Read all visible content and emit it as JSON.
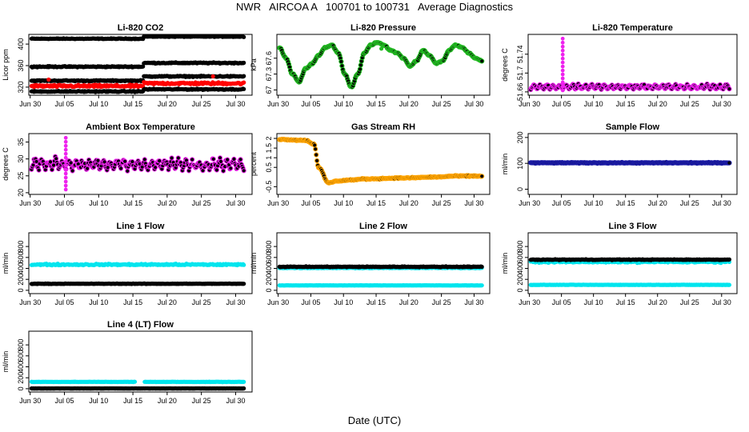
{
  "page": {
    "title": "NWR   AIRCOA A   100701 to 100731   Average Diagnostics",
    "xlabel": "Date (UTC)"
  },
  "colors": {
    "black": "#000000",
    "red": "#ff0000",
    "green": "#22bb22",
    "magenta": "#ee22ee",
    "orange": "#ffa500",
    "blue": "#1a1aa6",
    "cyan": "#00e5ee"
  },
  "x_tick_labels": [
    "Jun 30",
    "Jul 05",
    "Jul 10",
    "Jul 15",
    "Jul 20",
    "Jul 25",
    "Jul 30"
  ],
  "chart_data": [
    {
      "type": "scatter",
      "title": "Li-820 CO2",
      "ylabel": "Licor ppm",
      "xlim": [
        0.6,
        33.2
      ],
      "ylim": [
        305,
        418
      ],
      "yticks": [
        320,
        360,
        400
      ],
      "series": [
        {
          "name": "black-upper",
          "color": "black",
          "y_before": 410,
          "y_after": 414,
          "noise": 1
        },
        {
          "name": "black-middle",
          "color": "black",
          "y_before": 358,
          "y_after": 365,
          "noise": 1.5
        },
        {
          "name": "black-lower-1",
          "color": "black",
          "y_before": 332,
          "y_after": 340,
          "noise": 1.5
        },
        {
          "name": "red",
          "color": "red",
          "y_before": 322,
          "y_after": 327,
          "noise": 3,
          "outliers": [
            [
              3.5,
              334
            ],
            [
              27.5,
              340
            ]
          ]
        },
        {
          "name": "black-lower-2",
          "color": "black",
          "y_before": 312,
          "y_after": 316,
          "noise": 1.5
        }
      ],
      "step_day": 17.3
    },
    {
      "type": "scatter",
      "title": "Li-820 Pressure",
      "ylabel": "kPa",
      "xlim": [
        0.6,
        33.2
      ],
      "ylim": [
        66.9,
        68.05
      ],
      "yticks": [
        67.0,
        67.3,
        67.6
      ],
      "series": [
        {
          "name": "pressure",
          "color": "black",
          "edge": "green",
          "knots": [
            [
              1,
              67.8
            ],
            [
              2,
              67.6
            ],
            [
              3,
              67.3
            ],
            [
              4,
              67.15
            ],
            [
              5,
              67.4
            ],
            [
              6,
              67.5
            ],
            [
              7,
              67.65
            ],
            [
              8,
              67.8
            ],
            [
              9,
              67.85
            ],
            [
              10,
              67.7
            ],
            [
              11,
              67.3
            ],
            [
              12,
              67.05
            ],
            [
              13,
              67.3
            ],
            [
              14,
              67.7
            ],
            [
              15,
              67.85
            ],
            [
              16,
              67.9
            ],
            [
              17,
              67.85
            ],
            [
              18,
              67.75
            ],
            [
              19,
              67.7
            ],
            [
              20,
              67.6
            ],
            [
              21,
              67.45
            ],
            [
              22,
              67.55
            ],
            [
              23,
              67.75
            ],
            [
              24,
              67.65
            ],
            [
              25,
              67.5
            ],
            [
              26,
              67.55
            ],
            [
              27,
              67.75
            ],
            [
              28,
              67.85
            ],
            [
              29,
              67.8
            ],
            [
              30,
              67.7
            ],
            [
              31,
              67.6
            ],
            [
              32,
              67.55
            ]
          ]
        }
      ],
      "outliers": [
        [
          16.6,
          67.78
        ]
      ]
    },
    {
      "type": "scatter",
      "title": "Li-820 Temperature",
      "ylabel": "degrees C",
      "xlim": [
        0.6,
        33.2
      ],
      "ylim": [
        51.653,
        51.782
      ],
      "yticks": [
        51.66,
        51.7,
        51.74
      ],
      "series": [
        {
          "name": "temperature",
          "color": "black",
          "edge": "magenta",
          "base": 51.668,
          "amp": 0.008
        }
      ],
      "spike_day": 6.0
    },
    {
      "type": "scatter",
      "title": "Ambient Box Temperature",
      "ylabel": "degrees C",
      "xlim": [
        0.6,
        33.2
      ],
      "ylim": [
        19.5,
        37.5
      ],
      "yticks": [
        20,
        25,
        30,
        35
      ],
      "series": [
        {
          "name": "box-temperature",
          "color": "black",
          "edge": "magenta",
          "base": 27.5,
          "amp": 2.5
        }
      ],
      "spike_day": 6.0
    },
    {
      "type": "scatter",
      "title": "Gas Stream RH",
      "ylabel": "percent",
      "xlim": [
        0.6,
        33.2
      ],
      "ylim": [
        -0.9,
        2.25
      ],
      "yticks": [
        -0.5,
        0.5,
        1.0,
        1.5,
        2.0
      ],
      "series": [
        {
          "name": "rh",
          "color": "black",
          "edge": "orange",
          "knots": [
            [
              1,
              1.95
            ],
            [
              5,
              1.9
            ],
            [
              6.3,
              1.7
            ],
            [
              7,
              0.5
            ],
            [
              8.5,
              -0.3
            ],
            [
              10,
              -0.2
            ],
            [
              12,
              -0.15
            ],
            [
              14,
              -0.1
            ],
            [
              20,
              -0.05
            ],
            [
              25,
              0.0
            ],
            [
              28,
              0.05
            ],
            [
              32,
              0.05
            ]
          ]
        }
      ]
    },
    {
      "type": "scatter",
      "title": "Sample Flow",
      "ylabel": "ml/min",
      "xlim": [
        0.6,
        33.2
      ],
      "ylim": [
        -20,
        215
      ],
      "yticks": [
        0,
        100,
        200
      ],
      "series": [
        {
          "name": "sample-flow",
          "color": "black",
          "edge": "blue",
          "base": 102,
          "noise": 2
        }
      ]
    },
    {
      "type": "scatter",
      "title": "Line 1 Flow",
      "ylabel": "ml/min",
      "xlim": [
        0.6,
        33.2
      ],
      "ylim": [
        -60,
        1050
      ],
      "yticks": [
        0,
        200,
        400,
        600,
        800
      ],
      "series": [
        {
          "name": "cyan",
          "color": "cyan",
          "base": 470,
          "noise": 20
        },
        {
          "name": "black",
          "color": "black",
          "base": 120,
          "noise": 6
        }
      ]
    },
    {
      "type": "scatter",
      "title": "Line 2 Flow",
      "ylabel": "ml/min",
      "xlim": [
        0.6,
        33.2
      ],
      "ylim": [
        -60,
        1050
      ],
      "yticks": [
        0,
        200,
        400,
        600,
        800
      ],
      "series": [
        {
          "name": "cyan-upper",
          "color": "cyan",
          "base": 410,
          "noise": 10
        },
        {
          "name": "black",
          "color": "black",
          "base": 430,
          "noise": 10
        },
        {
          "name": "cyan-lower",
          "color": "cyan",
          "base": 90,
          "noise": 3
        }
      ]
    },
    {
      "type": "scatter",
      "title": "Line 3 Flow",
      "ylabel": "ml/min",
      "xlim": [
        0.6,
        33.2
      ],
      "ylim": [
        -60,
        1050
      ],
      "yticks": [
        0,
        200,
        400,
        600,
        800
      ],
      "series": [
        {
          "name": "cyan-upper",
          "color": "cyan",
          "base": 520,
          "noise": 20
        },
        {
          "name": "black",
          "color": "black",
          "base": 560,
          "noise": 10
        },
        {
          "name": "cyan-lower",
          "color": "cyan",
          "base": 100,
          "noise": 4
        }
      ]
    },
    {
      "type": "scatter",
      "title": "Line 4 (LT) Flow",
      "ylabel": "ml/min",
      "xlim": [
        0.6,
        33.2
      ],
      "ylim": [
        -60,
        1050
      ],
      "yticks": [
        0,
        200,
        400,
        600,
        800
      ],
      "series": [
        {
          "name": "cyan",
          "color": "cyan",
          "base": 125,
          "noise": 4,
          "gap": [
            16.2,
            17.4
          ]
        },
        {
          "name": "black",
          "color": "black",
          "base": 5,
          "noise": 2
        }
      ]
    }
  ]
}
